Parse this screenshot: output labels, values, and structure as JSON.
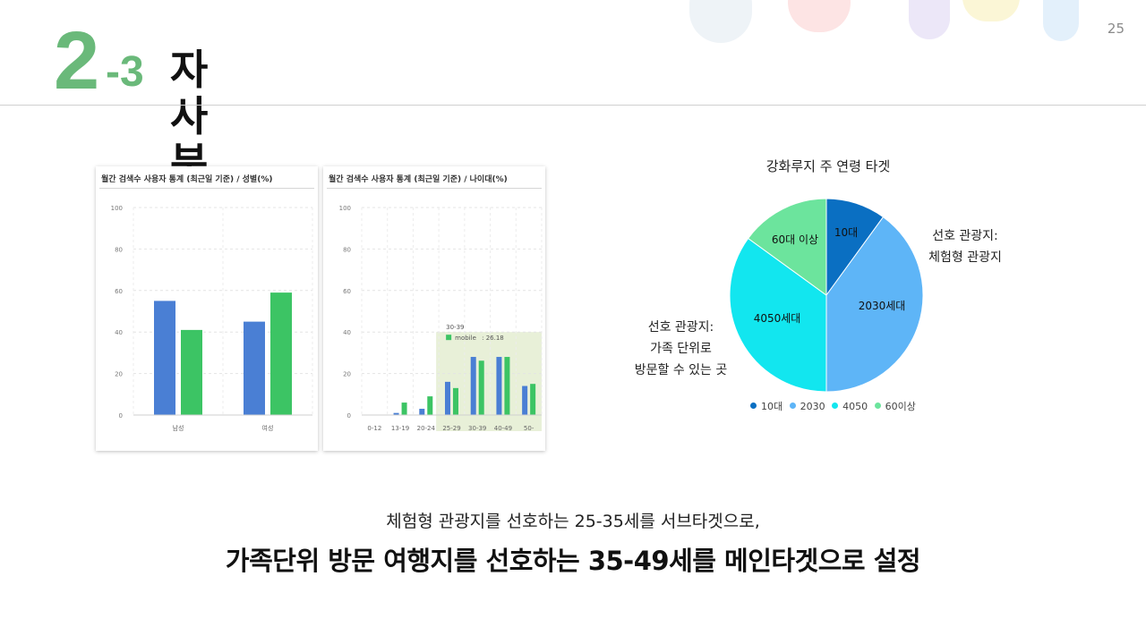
{
  "page": {
    "number": "25"
  },
  "title": {
    "major": "2",
    "minor": "-3",
    "text": "자사분석"
  },
  "colors": {
    "accent_green": "#6ab97a",
    "male_bar": "#4a7fd4",
    "female_bar": "#3cc464",
    "age_bar_blue": "#4a7fd4",
    "age_bar_green": "#3cc464",
    "highlight": "#e8f0d8"
  },
  "chart_data": [
    {
      "type": "bar",
      "title": "월간 검색수 사용자 통계 (최근일 기준) / 성별(%)",
      "categories": [
        "남성",
        "여성"
      ],
      "ylim": [
        0,
        100
      ],
      "yticks": [
        0,
        20,
        40,
        60,
        80,
        100
      ],
      "grid": true,
      "series": [
        {
          "values": [
            55,
            45
          ],
          "color": "#4a7fd4"
        },
        {
          "values": [
            41,
            59
          ],
          "color": "#3cc464"
        }
      ]
    },
    {
      "type": "bar",
      "title": "월간 검색수 사용자 통계 (최근일 기준) / 나이대(%)",
      "categories": [
        "0-12",
        "13-19",
        "20-24",
        "25-29",
        "30-39",
        "40-49",
        "50-"
      ],
      "ylim": [
        0,
        100
      ],
      "yticks": [
        0,
        20,
        40,
        60,
        80,
        100
      ],
      "grid": true,
      "series": [
        {
          "values": [
            0,
            1,
            3,
            16,
            28,
            28,
            14
          ],
          "color": "#4a7fd4"
        },
        {
          "values": [
            0,
            6,
            9,
            13,
            26.18,
            28,
            15
          ],
          "color": "#3cc464"
        }
      ],
      "highlight_from_category": "25-29",
      "tooltip": {
        "title": "30-39",
        "series": "mobile",
        "value": "26.18"
      }
    },
    {
      "type": "pie",
      "title": "강화루지 주 연령 타겟",
      "slices": [
        {
          "label": "10대",
          "legend": "10대",
          "value": 10,
          "color": "#0a6fc2"
        },
        {
          "label": "2030세대",
          "legend": "2030",
          "value": 40,
          "color": "#5eb5f7"
        },
        {
          "label": "4050세대",
          "legend": "4050",
          "value": 35,
          "color": "#12e6ef"
        },
        {
          "label": "60대 이상",
          "legend": "60이상",
          "value": 15,
          "color": "#6ce49d"
        }
      ],
      "legend_position": "bottom"
    }
  ],
  "callouts": {
    "right": [
      "선호 관광지:",
      "체험형 관광지"
    ],
    "left": [
      "선호 관광지:",
      "가족 단위로",
      "방문할 수 있는 곳"
    ]
  },
  "summary": {
    "line1": "체험형 관광지를 선호하는 25-35세를 서브타겟으로,",
    "line2": "가족단위 방문 여행지를 선호하는 35-49세를 메인타겟으로 설정"
  }
}
